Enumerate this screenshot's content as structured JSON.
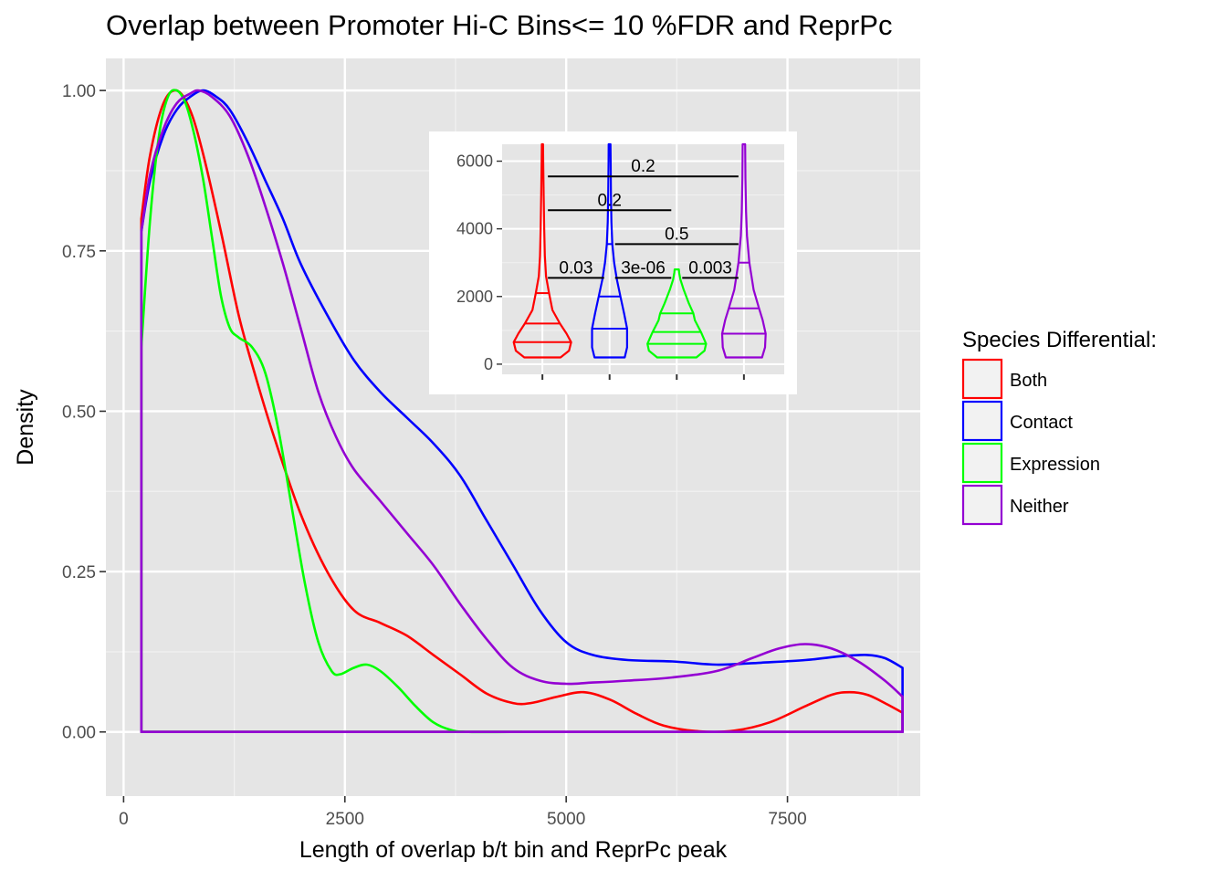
{
  "chart_data": [
    {
      "type": "density",
      "title": "Overlap between Promoter Hi-C Bins<= 10 %FDR and ReprPc",
      "xlabel": "Length of overlap b/t bin and ReprPc peak",
      "ylabel": "Density",
      "xlim": [
        -200,
        9000
      ],
      "ylim": [
        -0.1,
        1.05
      ],
      "x_ticks": [
        0,
        2500,
        5000,
        7500
      ],
      "x_tick_labels": [
        "0",
        "2500",
        "5000",
        "7500"
      ],
      "y_ticks": [
        0,
        0.25,
        0.5,
        0.75,
        1.0
      ],
      "y_tick_labels": [
        "0.00",
        "0.25",
        "0.50",
        "0.75",
        "1.00"
      ],
      "grid": true,
      "legend": {
        "title": "Species Differential:",
        "position": "right",
        "entries": [
          "Both",
          "Contact",
          "Expression",
          "Neither"
        ]
      },
      "series": [
        {
          "name": "Both",
          "color": "#ff0000",
          "points": [
            [
              200,
              0.8
            ],
            [
              300,
              0.9
            ],
            [
              450,
              0.98
            ],
            [
              600,
              1.0
            ],
            [
              750,
              0.97
            ],
            [
              900,
              0.9
            ],
            [
              1100,
              0.78
            ],
            [
              1300,
              0.65
            ],
            [
              1500,
              0.55
            ],
            [
              1700,
              0.46
            ],
            [
              2000,
              0.34
            ],
            [
              2300,
              0.25
            ],
            [
              2600,
              0.19
            ],
            [
              2900,
              0.17
            ],
            [
              3200,
              0.15
            ],
            [
              3500,
              0.12
            ],
            [
              3800,
              0.09
            ],
            [
              4100,
              0.06
            ],
            [
              4400,
              0.045
            ],
            [
              4600,
              0.045
            ],
            [
              4900,
              0.055
            ],
            [
              5200,
              0.062
            ],
            [
              5500,
              0.05
            ],
            [
              5800,
              0.028
            ],
            [
              6100,
              0.01
            ],
            [
              6500,
              0.001
            ],
            [
              6900,
              0.002
            ],
            [
              7300,
              0.015
            ],
            [
              7700,
              0.04
            ],
            [
              8000,
              0.058
            ],
            [
              8200,
              0.062
            ],
            [
              8400,
              0.058
            ],
            [
              8600,
              0.045
            ],
            [
              8800,
              0.03
            ]
          ]
        },
        {
          "name": "Contact",
          "color": "#0000ff",
          "points": [
            [
              200,
              0.78
            ],
            [
              300,
              0.86
            ],
            [
              450,
              0.93
            ],
            [
              600,
              0.97
            ],
            [
              750,
              0.99
            ],
            [
              900,
              1.0
            ],
            [
              1050,
              0.99
            ],
            [
              1200,
              0.97
            ],
            [
              1400,
              0.92
            ],
            [
              1600,
              0.86
            ],
            [
              1800,
              0.8
            ],
            [
              2000,
              0.73
            ],
            [
              2300,
              0.65
            ],
            [
              2600,
              0.58
            ],
            [
              2900,
              0.53
            ],
            [
              3200,
              0.49
            ],
            [
              3500,
              0.45
            ],
            [
              3800,
              0.4
            ],
            [
              4100,
              0.33
            ],
            [
              4400,
              0.26
            ],
            [
              4700,
              0.19
            ],
            [
              5000,
              0.14
            ],
            [
              5300,
              0.12
            ],
            [
              5700,
              0.112
            ],
            [
              6200,
              0.11
            ],
            [
              6700,
              0.105
            ],
            [
              7200,
              0.108
            ],
            [
              7700,
              0.112
            ],
            [
              8100,
              0.118
            ],
            [
              8400,
              0.12
            ],
            [
              8600,
              0.115
            ],
            [
              8800,
              0.1
            ]
          ]
        },
        {
          "name": "Expression",
          "color": "#00ff00",
          "points": [
            [
              200,
              0.6
            ],
            [
              300,
              0.8
            ],
            [
              400,
              0.93
            ],
            [
              500,
              0.99
            ],
            [
              600,
              1.0
            ],
            [
              700,
              0.98
            ],
            [
              800,
              0.93
            ],
            [
              900,
              0.86
            ],
            [
              1000,
              0.77
            ],
            [
              1100,
              0.68
            ],
            [
              1200,
              0.63
            ],
            [
              1300,
              0.615
            ],
            [
              1450,
              0.6
            ],
            [
              1600,
              0.56
            ],
            [
              1750,
              0.47
            ],
            [
              1900,
              0.35
            ],
            [
              2050,
              0.23
            ],
            [
              2200,
              0.14
            ],
            [
              2350,
              0.095
            ],
            [
              2450,
              0.09
            ],
            [
              2600,
              0.1
            ],
            [
              2750,
              0.105
            ],
            [
              2900,
              0.095
            ],
            [
              3100,
              0.07
            ],
            [
              3300,
              0.04
            ],
            [
              3500,
              0.015
            ],
            [
              3700,
              0.003
            ],
            [
              3900,
              0.0
            ],
            [
              4500,
              0.0
            ]
          ]
        },
        {
          "name": "Neither",
          "color": "#9400d3",
          "points": [
            [
              200,
              0.78
            ],
            [
              300,
              0.87
            ],
            [
              450,
              0.94
            ],
            [
              600,
              0.98
            ],
            [
              750,
              0.995
            ],
            [
              850,
              1.0
            ],
            [
              1000,
              0.99
            ],
            [
              1200,
              0.96
            ],
            [
              1400,
              0.9
            ],
            [
              1600,
              0.82
            ],
            [
              1800,
              0.73
            ],
            [
              2000,
              0.63
            ],
            [
              2200,
              0.53
            ],
            [
              2400,
              0.46
            ],
            [
              2600,
              0.41
            ],
            [
              2900,
              0.36
            ],
            [
              3200,
              0.31
            ],
            [
              3500,
              0.26
            ],
            [
              3800,
              0.2
            ],
            [
              4100,
              0.145
            ],
            [
              4400,
              0.1
            ],
            [
              4700,
              0.08
            ],
            [
              5000,
              0.075
            ],
            [
              5300,
              0.077
            ],
            [
              5700,
              0.08
            ],
            [
              6200,
              0.085
            ],
            [
              6700,
              0.095
            ],
            [
              7100,
              0.115
            ],
            [
              7400,
              0.13
            ],
            [
              7700,
              0.137
            ],
            [
              8000,
              0.13
            ],
            [
              8300,
              0.11
            ],
            [
              8600,
              0.08
            ],
            [
              8800,
              0.055
            ]
          ]
        }
      ]
    },
    {
      "type": "violin",
      "title": "",
      "xlabel": "",
      "ylabel": "",
      "ylim": [
        -300,
        6500
      ],
      "y_ticks": [
        0,
        2000,
        4000,
        6000
      ],
      "y_tick_labels": [
        "0",
        "2000",
        "4000",
        "6000"
      ],
      "x_tick_labels": [
        "",
        "",
        "",
        ""
      ],
      "groups": [
        {
          "name": "Both",
          "color": "#ff0000",
          "min": 200,
          "max": 6500,
          "quantiles": [
            650,
            1200,
            2100
          ],
          "profile": [
            [
              200,
              0.6
            ],
            [
              400,
              0.88
            ],
            [
              650,
              0.95
            ],
            [
              900,
              0.8
            ],
            [
              1200,
              0.58
            ],
            [
              1600,
              0.33
            ],
            [
              2100,
              0.22
            ],
            [
              2600,
              0.12
            ],
            [
              3200,
              0.08
            ],
            [
              4000,
              0.06
            ],
            [
              5000,
              0.04
            ],
            [
              6000,
              0.025
            ],
            [
              6500,
              0.02
            ]
          ]
        },
        {
          "name": "Contact",
          "color": "#0000ff",
          "min": 200,
          "max": 6500,
          "quantiles": [
            1050,
            2000,
            3550
          ],
          "profile": [
            [
              200,
              0.5
            ],
            [
              500,
              0.58
            ],
            [
              1050,
              0.58
            ],
            [
              1500,
              0.48
            ],
            [
              2000,
              0.36
            ],
            [
              2500,
              0.24
            ],
            [
              3000,
              0.15
            ],
            [
              3550,
              0.09
            ],
            [
              4200,
              0.06
            ],
            [
              5000,
              0.045
            ],
            [
              6000,
              0.035
            ],
            [
              6500,
              0.03
            ]
          ]
        },
        {
          "name": "Expression",
          "color": "#00ff00",
          "min": 200,
          "max": 2800,
          "quantiles": [
            600,
            950,
            1500
          ],
          "profile": [
            [
              200,
              0.65
            ],
            [
              400,
              0.92
            ],
            [
              600,
              0.97
            ],
            [
              950,
              0.8
            ],
            [
              1300,
              0.6
            ],
            [
              1500,
              0.55
            ],
            [
              1800,
              0.4
            ],
            [
              2200,
              0.23
            ],
            [
              2500,
              0.12
            ],
            [
              2700,
              0.08
            ],
            [
              2800,
              0.07
            ]
          ]
        },
        {
          "name": "Neither",
          "color": "#9400d3",
          "min": 200,
          "max": 6500,
          "quantiles": [
            900,
            1650,
            3000
          ],
          "profile": [
            [
              200,
              0.6
            ],
            [
              500,
              0.7
            ],
            [
              900,
              0.72
            ],
            [
              1300,
              0.62
            ],
            [
              1650,
              0.5
            ],
            [
              2200,
              0.32
            ],
            [
              3000,
              0.18
            ],
            [
              3800,
              0.1
            ],
            [
              4500,
              0.07
            ],
            [
              5500,
              0.05
            ],
            [
              6500,
              0.04
            ]
          ]
        }
      ],
      "comparisons": [
        {
          "from": 1,
          "to": 2,
          "y": 2550,
          "label": "0.03"
        },
        {
          "from": 2,
          "to": 3,
          "y": 2550,
          "label": "3e-06"
        },
        {
          "from": 3,
          "to": 4,
          "y": 2550,
          "label": "0.003"
        },
        {
          "from": 2,
          "to": 4,
          "y": 3550,
          "label": "0.5"
        },
        {
          "from": 1,
          "to": 3,
          "y": 4550,
          "label": "0.2"
        },
        {
          "from": 1,
          "to": 4,
          "y": 5550,
          "label": "0.2"
        }
      ]
    }
  ]
}
